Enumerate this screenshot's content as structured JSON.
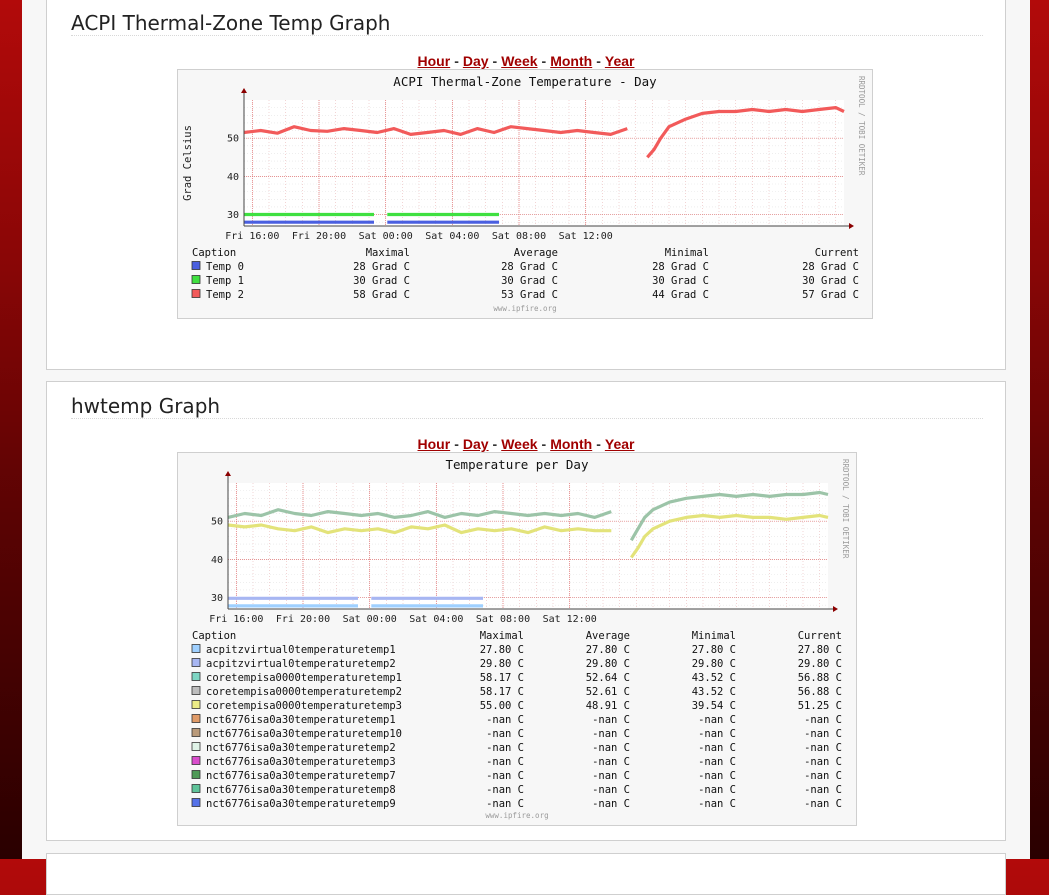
{
  "range_links": [
    "Hour",
    "Day",
    "Week",
    "Month",
    "Year"
  ],
  "range_separator": "-",
  "acpi": {
    "section_title": "ACPI Thermal-Zone Temp Graph",
    "chart_data": {
      "type": "line",
      "title": "ACPI Thermal-Zone Temperature - Day",
      "ylabel": "Grad Celsius",
      "xticks": [
        "Fri 16:00",
        "Fri 20:00",
        "Sat 00:00",
        "Sat 04:00",
        "Sat 08:00",
        "Sat 12:00"
      ],
      "yticks": [
        30,
        40,
        50
      ],
      "ylim": [
        27,
        60
      ],
      "grid": true,
      "watermark": "RRDTOOL / TOBI OETIKER",
      "footer": "www.ipfire.org",
      "legend": {
        "headers": [
          "Caption",
          "Maximal",
          "Average",
          "Minimal",
          "Current"
        ],
        "rows": [
          {
            "name": "Temp 0",
            "color": "#4a5fe0",
            "max": "28 Grad C",
            "avg": "28 Grad C",
            "min": "28 Grad C",
            "cur": "28 Grad C"
          },
          {
            "name": "Temp 1",
            "color": "#3fe040",
            "max": "30 Grad C",
            "avg": "30 Grad C",
            "min": "30 Grad C",
            "cur": "30 Grad C"
          },
          {
            "name": "Temp 2",
            "color": "#f25a5a",
            "max": "58 Grad C",
            "avg": "53 Grad C",
            "min": "44 Grad C",
            "cur": "57 Grad C"
          }
        ]
      },
      "series": [
        {
          "name": "Temp 0",
          "color": "#4a5fe0",
          "segments": [
            [
              [
                15.5,
                28
              ],
              [
                23.3,
                28
              ]
            ],
            [
              [
                24.1,
                28
              ],
              [
                30.8,
                28
              ]
            ]
          ]
        },
        {
          "name": "Temp 1",
          "color": "#3fe040",
          "segments": [
            [
              [
                15.5,
                30
              ],
              [
                23.3,
                30
              ]
            ],
            [
              [
                24.1,
                30
              ],
              [
                30.8,
                30
              ]
            ]
          ]
        },
        {
          "name": "Temp 2",
          "color": "#f25a5a",
          "segments": [
            [
              [
                15.5,
                51.5
              ],
              [
                16.5,
                52
              ],
              [
                17.5,
                51.3
              ],
              [
                18.5,
                53
              ],
              [
                19.5,
                52
              ],
              [
                20.5,
                51.8
              ],
              [
                21.5,
                52.5
              ],
              [
                22.5,
                52
              ],
              [
                23.5,
                51.5
              ],
              [
                24.5,
                52.5
              ],
              [
                25.5,
                51
              ],
              [
                26.5,
                51.5
              ],
              [
                27.5,
                52
              ],
              [
                28.5,
                51
              ],
              [
                29.5,
                52.5
              ],
              [
                30.5,
                51.5
              ],
              [
                31.5,
                53
              ],
              [
                32.5,
                52.5
              ],
              [
                33.5,
                52
              ],
              [
                34.5,
                51.5
              ],
              [
                35.5,
                52
              ],
              [
                36.5,
                51.5
              ],
              [
                37.5,
                51
              ],
              [
                38.5,
                52.5
              ]
            ],
            [
              [
                39.7,
                45
              ],
              [
                40.1,
                47
              ],
              [
                40.5,
                50
              ],
              [
                41,
                53
              ],
              [
                42,
                55
              ],
              [
                43,
                56.5
              ],
              [
                44,
                57
              ],
              [
                45,
                57
              ],
              [
                46,
                57.5
              ],
              [
                47,
                57
              ],
              [
                48,
                57.5
              ],
              [
                49,
                57
              ],
              [
                50,
                57.5
              ],
              [
                51,
                58
              ],
              [
                51.5,
                57
              ]
            ]
          ]
        }
      ]
    }
  },
  "hwtemp": {
    "section_title": "hwtemp Graph",
    "chart_data": {
      "type": "line",
      "title": "Temperature per Day",
      "ylabel": "",
      "xticks": [
        "Fri 16:00",
        "Fri 20:00",
        "Sat 00:00",
        "Sat 04:00",
        "Sat 08:00",
        "Sat 12:00"
      ],
      "yticks": [
        30,
        40,
        50
      ],
      "ylim": [
        27,
        60
      ],
      "grid": true,
      "watermark": "RRDTOOL / TOBI OETIKER",
      "footer": "www.ipfire.org",
      "legend": {
        "headers": [
          "Caption",
          "Maximal",
          "Average",
          "Minimal",
          "Current"
        ],
        "rows": [
          {
            "name": "acpitzvirtual0temperaturetemp1",
            "color": "#9fd0ff",
            "max": "27.80 C",
            "avg": "27.80 C",
            "min": "27.80 C",
            "cur": "27.80 C"
          },
          {
            "name": "acpitzvirtual0temperaturetemp2",
            "color": "#a7b6f2",
            "max": "29.80 C",
            "avg": "29.80 C",
            "min": "29.80 C",
            "cur": "29.80 C"
          },
          {
            "name": "coretempisa0000temperaturetemp1",
            "color": "#7ed6c4",
            "max": "58.17 C",
            "avg": "52.64 C",
            "min": "43.52 C",
            "cur": "56.88 C"
          },
          {
            "name": "coretempisa0000temperaturetemp2",
            "color": "#bdbdbd",
            "max": "58.17 C",
            "avg": "52.61 C",
            "min": "43.52 C",
            "cur": "56.88 C"
          },
          {
            "name": "coretempisa0000temperaturetemp3",
            "color": "#ecec86",
            "max": "55.00 C",
            "avg": "48.91 C",
            "min": "39.54 C",
            "cur": "51.25 C"
          },
          {
            "name": "nct6776isa0a30temperaturetemp1",
            "color": "#e09b68",
            "max": "-nan C",
            "avg": "-nan C",
            "min": "-nan C",
            "cur": "-nan C"
          },
          {
            "name": "nct6776isa0a30temperaturetemp10",
            "color": "#b99a7a",
            "max": "-nan C",
            "avg": "-nan C",
            "min": "-nan C",
            "cur": "-nan C"
          },
          {
            "name": "nct6776isa0a30temperaturetemp2",
            "color": "#dff3e7",
            "max": "-nan C",
            "avg": "-nan C",
            "min": "-nan C",
            "cur": "-nan C"
          },
          {
            "name": "nct6776isa0a30temperaturetemp3",
            "color": "#d94dcc",
            "max": "-nan C",
            "avg": "-nan C",
            "min": "-nan C",
            "cur": "-nan C"
          },
          {
            "name": "nct6776isa0a30temperaturetemp7",
            "color": "#4f9a57",
            "max": "-nan C",
            "avg": "-nan C",
            "min": "-nan C",
            "cur": "-nan C"
          },
          {
            "name": "nct6776isa0a30temperaturetemp8",
            "color": "#5fc49a",
            "max": "-nan C",
            "avg": "-nan C",
            "min": "-nan C",
            "cur": "-nan C"
          },
          {
            "name": "nct6776isa0a30temperaturetemp9",
            "color": "#5572e8",
            "max": "-nan C",
            "avg": "-nan C",
            "min": "-nan C",
            "cur": "-nan C"
          }
        ]
      },
      "series": [
        {
          "name": "acpitzvirtual0temperaturetemp1",
          "color": "#9fd0ff",
          "segments": [
            [
              [
                15.5,
                27.8
              ],
              [
                23.3,
                27.8
              ]
            ],
            [
              [
                24.1,
                27.8
              ],
              [
                30.8,
                27.8
              ]
            ]
          ]
        },
        {
          "name": "acpitzvirtual0temperaturetemp2",
          "color": "#a7b6f2",
          "segments": [
            [
              [
                15.5,
                29.8
              ],
              [
                23.3,
                29.8
              ]
            ],
            [
              [
                24.1,
                29.8
              ],
              [
                30.8,
                29.8
              ]
            ]
          ]
        },
        {
          "name": "coretempisa0000temperaturetemp1",
          "color": "#9cc4a8",
          "segments": [
            [
              [
                15.5,
                51
              ],
              [
                16.5,
                52
              ],
              [
                17.5,
                51.5
              ],
              [
                18.5,
                53
              ],
              [
                19.5,
                52
              ],
              [
                20.5,
                51.5
              ],
              [
                21.5,
                52.5
              ],
              [
                22.5,
                52
              ],
              [
                23.5,
                51.5
              ],
              [
                24.5,
                52
              ],
              [
                25.5,
                51
              ],
              [
                26.5,
                51.5
              ],
              [
                27.5,
                52.5
              ],
              [
                28.5,
                51
              ],
              [
                29.5,
                52
              ],
              [
                30.5,
                51.5
              ],
              [
                31.5,
                52.5
              ],
              [
                32.5,
                52
              ],
              [
                33.5,
                51.5
              ],
              [
                34.5,
                52
              ],
              [
                35.5,
                51.5
              ],
              [
                36.5,
                52
              ],
              [
                37.5,
                51
              ],
              [
                38.5,
                52.5
              ]
            ],
            [
              [
                39.7,
                45
              ],
              [
                40.1,
                48
              ],
              [
                40.5,
                51
              ],
              [
                41,
                53
              ],
              [
                42,
                55
              ],
              [
                43,
                56
              ],
              [
                44,
                56.5
              ],
              [
                45,
                57
              ],
              [
                46,
                56.5
              ],
              [
                47,
                57
              ],
              [
                48,
                56.5
              ],
              [
                49,
                57
              ],
              [
                50,
                57
              ],
              [
                51,
                57.5
              ],
              [
                51.5,
                57
              ]
            ]
          ]
        },
        {
          "name": "coretempisa0000temperaturetemp3",
          "color": "#e3e37a",
          "segments": [
            [
              [
                15.5,
                49
              ],
              [
                16.5,
                48.5
              ],
              [
                17.5,
                49
              ],
              [
                18.5,
                48
              ],
              [
                19.5,
                47.5
              ],
              [
                20.5,
                48.5
              ],
              [
                21.5,
                47
              ],
              [
                22.5,
                48
              ],
              [
                23.5,
                47.5
              ],
              [
                24.5,
                48
              ],
              [
                25.5,
                47
              ],
              [
                26.5,
                48.5
              ],
              [
                27.5,
                48
              ],
              [
                28.5,
                49
              ],
              [
                29.5,
                47
              ],
              [
                30.5,
                48
              ],
              [
                31.5,
                47.5
              ],
              [
                32.5,
                48
              ],
              [
                33.5,
                47
              ],
              [
                34.5,
                48.5
              ],
              [
                35.5,
                47.5
              ],
              [
                36.5,
                48
              ],
              [
                37.5,
                47.5
              ],
              [
                38.5,
                47.5
              ]
            ],
            [
              [
                39.7,
                40.5
              ],
              [
                40.1,
                43
              ],
              [
                40.5,
                46
              ],
              [
                41,
                48
              ],
              [
                42,
                50
              ],
              [
                43,
                51
              ],
              [
                44,
                51.5
              ],
              [
                45,
                51
              ],
              [
                46,
                51.5
              ],
              [
                47,
                51
              ],
              [
                48,
                51
              ],
              [
                49,
                50.5
              ],
              [
                50,
                51
              ],
              [
                51,
                51.5
              ],
              [
                51.5,
                51
              ]
            ]
          ]
        }
      ]
    }
  }
}
